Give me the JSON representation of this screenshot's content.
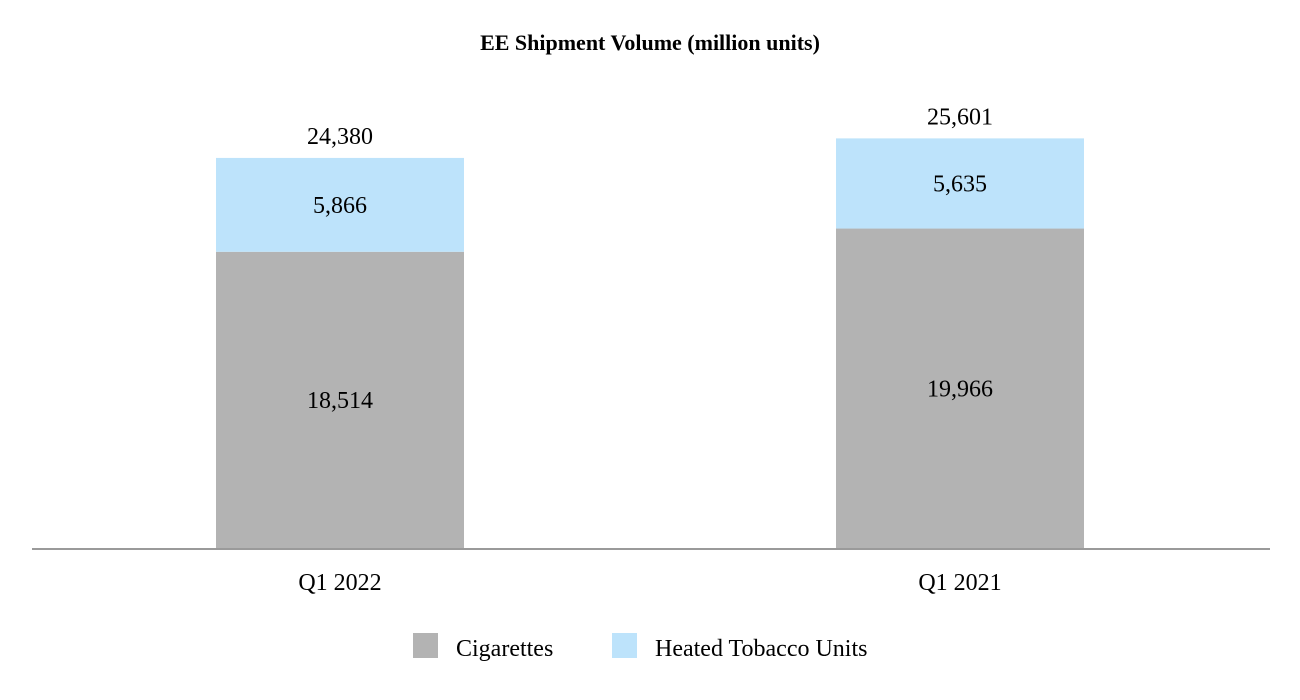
{
  "chart_data": {
    "type": "bar",
    "stacked": true,
    "title": "EE Shipment Volume (million units)",
    "categories": [
      "Q1 2022",
      "Q1 2021"
    ],
    "series": [
      {
        "name": "Cigarettes",
        "values": [
          18514,
          19966
        ],
        "color": "#b3b3b3",
        "label_texts": [
          "18,514",
          "19,966"
        ]
      },
      {
        "name": "Heated Tobacco Units",
        "values": [
          5866,
          5635
        ],
        "color": "#bde3fb",
        "label_texts": [
          "5,866",
          "5,635"
        ]
      }
    ],
    "totals": [
      24380,
      25601
    ],
    "total_label_texts": [
      "24,380",
      "25,601"
    ],
    "ylim": [
      0,
      28000
    ],
    "legend_position": "bottom",
    "grid": false
  }
}
